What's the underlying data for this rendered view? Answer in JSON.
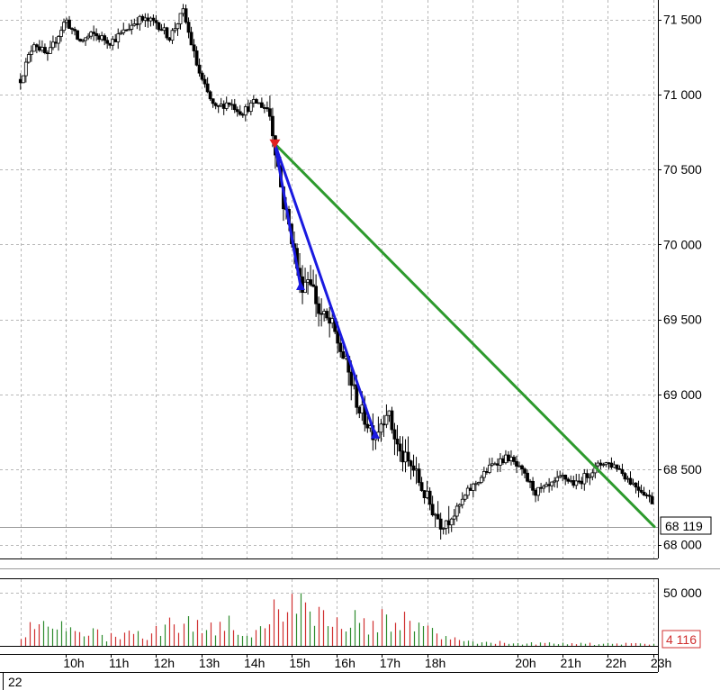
{
  "chart_data": [
    {
      "type": "candlestick",
      "title": "",
      "xlabel": "",
      "ylabel": "",
      "y_ticks": [
        "71 500",
        "71 000",
        "70 500",
        "70 000",
        "69 500",
        "69 000",
        "68 500",
        "68 000"
      ],
      "y_tick_values": [
        71500,
        71000,
        70500,
        70000,
        69500,
        69000,
        68500,
        68000
      ],
      "ylim": [
        67950,
        71820
      ],
      "grid": true,
      "last_price_label": "68 119",
      "last_price": 68119,
      "colors": {
        "candle_up": "#ffffff",
        "candle_down": "#000000",
        "grid": "#bdbdbd",
        "trend_blue": "#1a1ae0",
        "trend_green": "#2d9a2d",
        "marker_red": "#e02020"
      },
      "trendlines": [
        {
          "color": "green",
          "from": {
            "x": 14.63,
            "y": 70670
          },
          "to": {
            "x": 24.0,
            "y": 68119
          }
        },
        {
          "color": "blue",
          "from": {
            "x": 14.63,
            "y": 70670
          },
          "to": {
            "x": 15.2,
            "y": 69720
          }
        },
        {
          "color": "blue",
          "from": {
            "x": 14.63,
            "y": 70670
          },
          "to": {
            "x": 16.85,
            "y": 68730
          }
        }
      ],
      "markers": [
        {
          "shape": "triangle-down",
          "color": "red",
          "x": 14.63,
          "y": 70670
        },
        {
          "shape": "triangle-up",
          "color": "blue",
          "x": 15.2,
          "y": 69720
        },
        {
          "shape": "triangle-up",
          "color": "blue",
          "x": 16.85,
          "y": 68730
        }
      ],
      "price_path_hours": [
        9.0,
        9.3,
        9.6,
        10.0,
        10.3,
        10.6,
        11.0,
        11.3,
        11.6,
        12.0,
        12.3,
        12.6,
        12.9,
        13.0,
        13.3,
        13.6,
        13.9,
        14.2,
        14.5,
        14.63,
        14.8,
        15.0,
        15.2,
        15.4,
        15.6,
        15.9,
        16.2,
        16.5,
        16.85,
        17.1,
        17.4,
        17.7,
        18.0,
        18.3,
        18.6,
        18.9,
        19.2,
        19.5,
        19.8,
        20.1,
        20.4,
        20.7,
        21.0,
        21.3,
        21.6,
        21.9,
        22.2,
        22.5,
        22.8,
        23.1,
        23.4,
        23.7,
        24.0
      ],
      "price_path_values": [
        71100,
        71350,
        71250,
        71500,
        71350,
        71400,
        71350,
        71420,
        71500,
        71480,
        71380,
        71550,
        71200,
        71100,
        70900,
        70950,
        70880,
        70950,
        70900,
        70670,
        70300,
        70050,
        69720,
        69800,
        69550,
        69450,
        69200,
        68900,
        68730,
        68900,
        68600,
        68500,
        68300,
        68150,
        68200,
        68350,
        68450,
        68550,
        68580,
        68480,
        68350,
        68380,
        68450,
        68400,
        68480,
        68550,
        68520,
        68420,
        68350,
        68250,
        68200,
        68160,
        68119
      ]
    },
    {
      "type": "bar",
      "title": "",
      "xlabel": "",
      "ylabel": "",
      "y_ticks": [
        "50 000"
      ],
      "y_tick_values": [
        50000
      ],
      "ylim": [
        0,
        61500
      ],
      "last_volume_label": "4 116",
      "last_volume": 4116,
      "colors": {
        "up": "#2e8b2e",
        "down": "#d03030"
      },
      "x_ticks": [
        "10h",
        "11h",
        "12h",
        "13h",
        "14h",
        "15h",
        "16h",
        "17h",
        "18h",
        "20h",
        "21h",
        "22h",
        "23h"
      ],
      "x_tick_values": [
        10,
        11,
        12,
        13,
        14,
        15,
        16,
        17,
        18,
        20,
        21,
        22,
        23
      ],
      "date_label": "22",
      "volume_profile_hours": [
        9.0,
        10.0,
        11.0,
        12.0,
        12.6,
        13.0,
        13.6,
        14.0,
        14.5,
        14.8,
        15.0,
        15.3,
        15.8,
        16.2,
        16.6,
        17.0,
        17.4,
        18.0,
        18.6,
        19.2,
        20.0,
        21.0,
        22.0,
        23.0,
        24.0
      ],
      "volume_profile_values": [
        18000,
        20000,
        10000,
        16000,
        34000,
        22000,
        28000,
        12000,
        32000,
        48000,
        50000,
        40000,
        30000,
        36000,
        22000,
        40000,
        28000,
        22000,
        10000,
        4500,
        3500,
        2500,
        2500,
        2000,
        4116
      ]
    }
  ]
}
